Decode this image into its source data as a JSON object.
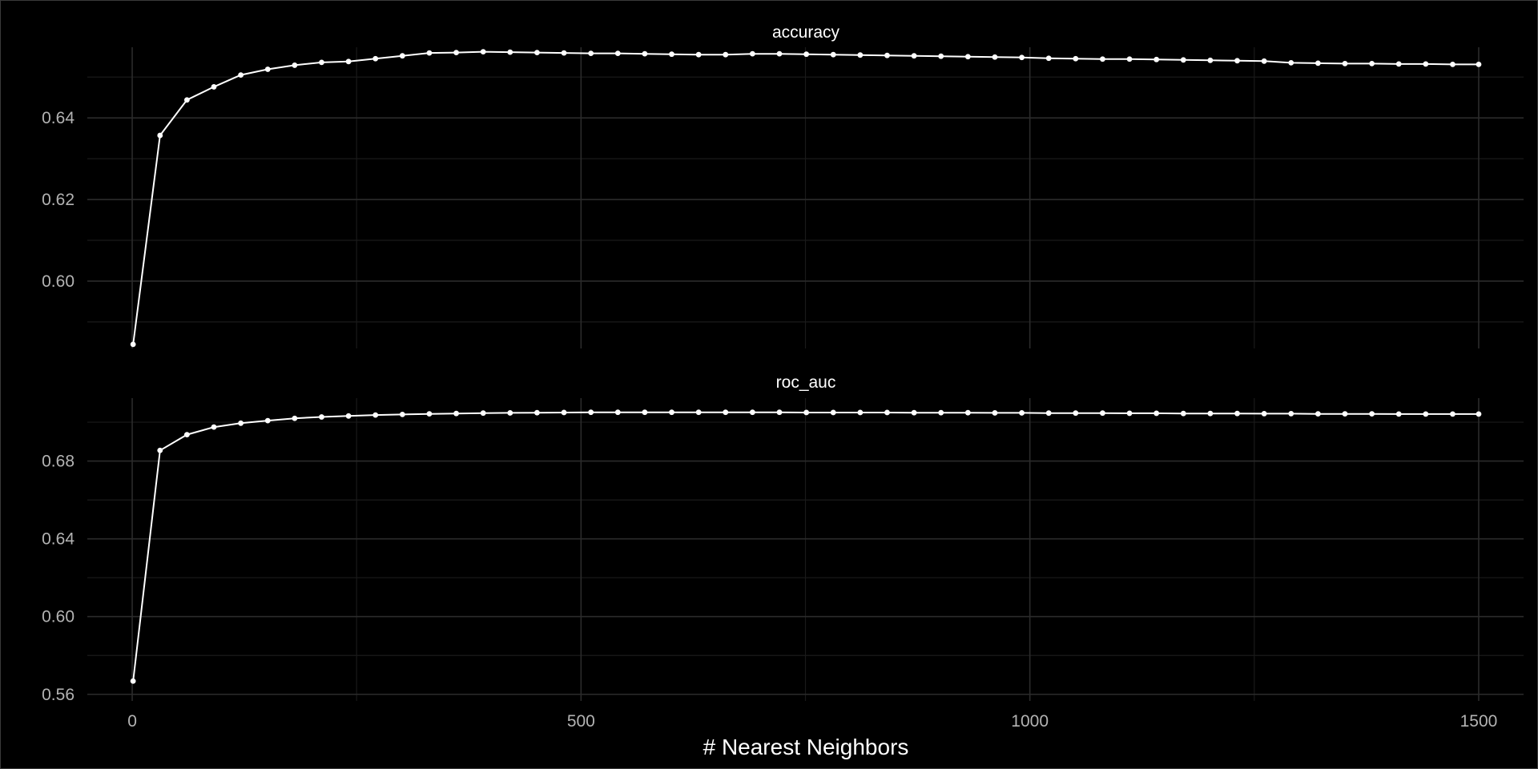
{
  "chart_data": [
    {
      "type": "line",
      "title": "accuracy",
      "xlabel": "# Nearest Neighbors",
      "ylabel": "",
      "xlim": [
        -50,
        1550
      ],
      "ylim": [
        0.5835,
        0.6573
      ],
      "x_ticks": [
        0,
        500,
        1000,
        1500
      ],
      "y_ticks": [
        0.6,
        0.62,
        0.64
      ],
      "grid": true,
      "x": [
        1,
        31,
        61,
        91,
        121,
        151,
        181,
        211,
        241,
        271,
        301,
        331,
        361,
        391,
        421,
        451,
        481,
        511,
        541,
        571,
        601,
        631,
        661,
        691,
        721,
        751,
        781,
        811,
        841,
        871,
        901,
        931,
        961,
        991,
        1021,
        1051,
        1081,
        1111,
        1141,
        1171,
        1201,
        1231,
        1261,
        1291,
        1321,
        1351,
        1381,
        1411,
        1441,
        1471,
        1500
      ],
      "series": [
        {
          "values": [
            0.5845,
            0.6357,
            0.6444,
            0.6476,
            0.6505,
            0.6519,
            0.6529,
            0.6536,
            0.6538,
            0.6545,
            0.6552,
            0.6559,
            0.656,
            0.6562,
            0.6561,
            0.656,
            0.6559,
            0.6558,
            0.6558,
            0.6557,
            0.6556,
            0.6555,
            0.6555,
            0.6557,
            0.6557,
            0.6556,
            0.6555,
            0.6554,
            0.6553,
            0.6552,
            0.6551,
            0.655,
            0.6549,
            0.6548,
            0.6546,
            0.6545,
            0.6544,
            0.6544,
            0.6543,
            0.6542,
            0.6541,
            0.654,
            0.6539,
            0.6535,
            0.6534,
            0.6533,
            0.6533,
            0.6532,
            0.6532,
            0.6531,
            0.6531
          ]
        }
      ]
    },
    {
      "type": "line",
      "title": "roc_auc",
      "xlabel": "# Nearest Neighbors",
      "ylabel": "",
      "xlim": [
        -50,
        1550
      ],
      "ylim": [
        0.5566,
        0.7124
      ],
      "x_ticks": [
        0,
        500,
        1000,
        1500
      ],
      "y_ticks": [
        0.56,
        0.6,
        0.64,
        0.68
      ],
      "grid": true,
      "x": [
        1,
        31,
        61,
        91,
        121,
        151,
        181,
        211,
        241,
        271,
        301,
        331,
        361,
        391,
        421,
        451,
        481,
        511,
        541,
        571,
        601,
        631,
        661,
        691,
        721,
        751,
        781,
        811,
        841,
        871,
        901,
        931,
        961,
        991,
        1021,
        1051,
        1081,
        1111,
        1141,
        1171,
        1201,
        1231,
        1261,
        1291,
        1321,
        1351,
        1381,
        1411,
        1441,
        1471,
        1500
      ],
      "series": [
        {
          "values": [
            0.5668,
            0.6855,
            0.6936,
            0.6975,
            0.6995,
            0.7008,
            0.702,
            0.7027,
            0.7032,
            0.7037,
            0.704,
            0.7043,
            0.7045,
            0.7047,
            0.7048,
            0.7049,
            0.705,
            0.7051,
            0.7051,
            0.7051,
            0.7051,
            0.7051,
            0.7051,
            0.7051,
            0.7051,
            0.705,
            0.705,
            0.705,
            0.705,
            0.7049,
            0.7049,
            0.7049,
            0.7048,
            0.7048,
            0.7047,
            0.7047,
            0.7047,
            0.7046,
            0.7046,
            0.7045,
            0.7045,
            0.7045,
            0.7044,
            0.7044,
            0.7043,
            0.7043,
            0.7043,
            0.7042,
            0.7042,
            0.7042,
            0.7042
          ]
        }
      ]
    }
  ],
  "colors": {
    "background": "#000000",
    "line": "#ffffff",
    "point": "#ffffff",
    "tick_label": "#b3b3b3",
    "title": "#ffffff"
  }
}
